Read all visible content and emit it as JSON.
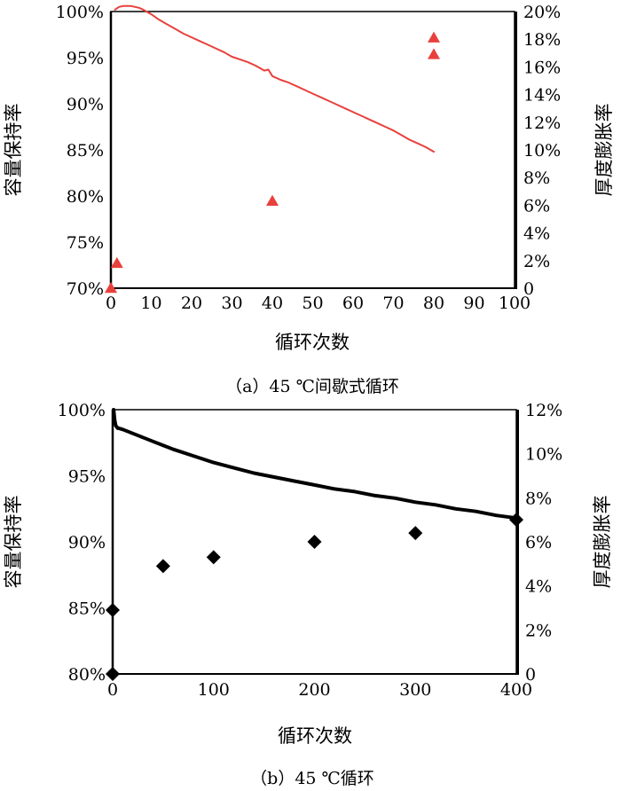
{
  "chart_data": [
    {
      "id": "a",
      "type": "line+scatter",
      "caption": "（a）45 ℃间歇式循环",
      "xlabel": "循环次数",
      "ylabel": "容量保持率",
      "y2label": "厚度膨胀率",
      "xlim": [
        0,
        100
      ],
      "xticks": [
        0,
        10,
        20,
        30,
        40,
        50,
        60,
        70,
        80,
        90,
        100
      ],
      "xtick_labels": [
        "0",
        "10",
        "20",
        "30",
        "40",
        "50",
        "60",
        "70",
        "80",
        "90",
        "100"
      ],
      "ylim": [
        70,
        100
      ],
      "yticks": [
        70,
        75,
        80,
        85,
        90,
        95,
        100
      ],
      "ytick_labels": [
        "70%",
        "75%",
        "80%",
        "85%",
        "90%",
        "95%",
        "100%"
      ],
      "y2lim": [
        0,
        20
      ],
      "y2ticks": [
        0,
        2,
        4,
        6,
        8,
        10,
        12,
        14,
        16,
        18,
        20
      ],
      "y2tick_labels": [
        "0",
        "2%",
        "4%",
        "6%",
        "8%",
        "10%",
        "12%",
        "14%",
        "16%",
        "18%",
        "20%"
      ],
      "grid": false,
      "line_color": "#e8403c",
      "marker_color": "#e8403c",
      "marker": "triangle",
      "line_series": {
        "axis": "left",
        "x": [
          1,
          2,
          3,
          4,
          5,
          6,
          7,
          8,
          10,
          12,
          14,
          16,
          18,
          20,
          22,
          24,
          26,
          28,
          30,
          32,
          34,
          36,
          38,
          39,
          40,
          42,
          44,
          46,
          48,
          50,
          52,
          54,
          56,
          58,
          60,
          62,
          64,
          66,
          68,
          70,
          72,
          74,
          76,
          78,
          80
        ],
        "y": [
          100.2,
          100.5,
          100.6,
          100.6,
          100.6,
          100.5,
          100.4,
          100.2,
          99.7,
          99.1,
          98.6,
          98.1,
          97.6,
          97.2,
          96.8,
          96.4,
          96.0,
          95.6,
          95.1,
          94.8,
          94.5,
          94.1,
          93.6,
          93.7,
          93.0,
          92.6,
          92.3,
          91.9,
          91.5,
          91.1,
          90.7,
          90.3,
          89.9,
          89.5,
          89.1,
          88.7,
          88.3,
          87.9,
          87.5,
          87.1,
          86.6,
          86.1,
          85.7,
          85.3,
          84.8
        ]
      },
      "scatter_series": {
        "axis": "right",
        "x": [
          0,
          1.5,
          40,
          80,
          80
        ],
        "y": [
          0.0,
          1.8,
          6.3,
          16.9,
          18.1
        ]
      }
    },
    {
      "id": "b",
      "type": "line+scatter",
      "caption": "（b）45 ℃循环",
      "xlabel": "循环次数",
      "ylabel": "容量保持率",
      "y2label": "厚度膨胀率",
      "xlim": [
        0,
        400
      ],
      "xticks": [
        0,
        100,
        200,
        300,
        400
      ],
      "xtick_labels": [
        "0",
        "100",
        "200",
        "300",
        "400"
      ],
      "ylim": [
        80,
        100
      ],
      "yticks": [
        80,
        85,
        90,
        95,
        100
      ],
      "ytick_labels": [
        "80%",
        "85%",
        "90%",
        "95%",
        "100%"
      ],
      "y2lim": [
        0,
        12
      ],
      "y2ticks": [
        0,
        2,
        4,
        6,
        8,
        10,
        12
      ],
      "y2tick_labels": [
        "0",
        "2%",
        "4%",
        "6%",
        "8%",
        "10%",
        "12%"
      ],
      "grid": false,
      "line_color": "#000000",
      "marker_color": "#000000",
      "marker": "diamond",
      "line_series": {
        "axis": "left",
        "x": [
          1,
          2,
          3,
          4,
          5,
          6,
          10,
          20,
          30,
          40,
          50,
          60,
          80,
          100,
          120,
          140,
          160,
          180,
          200,
          220,
          240,
          260,
          280,
          300,
          320,
          340,
          360,
          380,
          400
        ],
        "y": [
          100.0,
          99.2,
          98.8,
          98.7,
          98.6,
          98.6,
          98.5,
          98.2,
          97.9,
          97.6,
          97.3,
          97.0,
          96.5,
          96.0,
          95.6,
          95.2,
          94.9,
          94.6,
          94.3,
          94.0,
          93.8,
          93.5,
          93.3,
          93.0,
          92.8,
          92.5,
          92.3,
          92.0,
          91.8
        ]
      },
      "scatter_series": {
        "axis": "right",
        "x": [
          0,
          0,
          50,
          100,
          200,
          300,
          400
        ],
        "y": [
          0.0,
          2.9,
          4.9,
          5.3,
          6.0,
          6.4,
          7.0
        ]
      }
    }
  ]
}
